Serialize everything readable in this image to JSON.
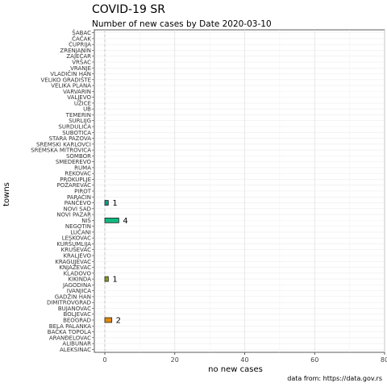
{
  "chart_data": {
    "type": "bar",
    "orientation": "horizontal",
    "title": "COVID-19 SR",
    "subtitle": "Number of new cases by Date 2020-03-10",
    "xlabel": "no new cases",
    "ylabel": "towns",
    "caption": "data from: https://data.gov.rs",
    "xlim": [
      -3,
      80
    ],
    "xticks": [
      0,
      20,
      40,
      60,
      80
    ],
    "grid": true,
    "legend": "none",
    "categories": [
      "ŠABAC",
      "ČAČAK",
      "ĆUPRIJA",
      "ZRENJANIN",
      "ZAJEČAR",
      "VRŠAC",
      "VRANJE",
      "VLADIČIN HAN",
      "VELIKO GRADIŠTE",
      "VELIKA PLANA",
      "VARVARIN",
      "VALJEVO",
      "UŽICE",
      "UB",
      "TEMERIN",
      "SURLIJG",
      "SURDULICA",
      "SUBOTICA",
      "STARA PAZOVA",
      "SREMSKI KARLOVCI",
      "SREMSKA MITROVICA",
      "SOMBOR",
      "SMEDEREVO",
      "RUMA",
      "REKOVAC",
      "PROKUPLJE",
      "POŽAREVAC",
      "PIROT",
      "PARAĆIN",
      "PANČEVO",
      "NOVI SAD",
      "NOVI PAZAR",
      "NIŠ",
      "NEGOTIN",
      "LUČANI",
      "LESKOVAC",
      "KURŠUMLIJA",
      "KRUŠEVAC",
      "KRALJEVO",
      "KRAGUJEVAC",
      "KNJAŽEVAC",
      "KLADOVO",
      "KIKINDA",
      "JAGODINA",
      "IVANJICA",
      "GADŽIN HAN",
      "DIMITROVGRAD",
      "BUJANOVAC",
      "BOLJEVAC",
      "BEOGRAD",
      "BELA PALANKA",
      "BAČKA TOPOLA",
      "ARANĐELOVAC",
      "ALIBUNAR",
      "ALEKSINAC"
    ],
    "values": [
      0,
      0,
      0,
      0,
      0,
      0,
      0,
      0,
      0,
      0,
      0,
      0,
      0,
      0,
      0,
      0,
      0,
      0,
      0,
      0,
      0,
      0,
      0,
      0,
      0,
      0,
      0,
      0,
      0,
      1,
      0,
      0,
      4,
      0,
      0,
      0,
      0,
      0,
      0,
      0,
      0,
      0,
      1,
      0,
      0,
      0,
      0,
      0,
      0,
      2,
      0,
      0,
      0,
      0,
      0
    ],
    "bar_colors": {
      "PANČEVO": "#00a08a",
      "NIŠ": "#10b880",
      "KIKINDA": "#8a9a1a",
      "BEOGRAD": "#e08a10"
    }
  }
}
